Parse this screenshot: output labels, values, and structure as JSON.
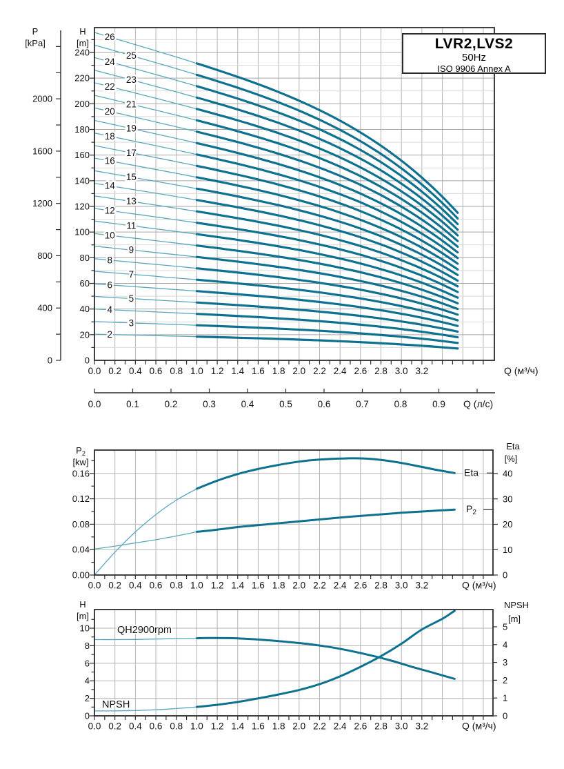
{
  "page": {
    "background": "#ffffff"
  },
  "title_block": {
    "model": "LVR2,LVS2",
    "frequency": "50Hz",
    "standard": "ISO 9906 Annex A"
  },
  "colors": {
    "curve": "#0e7190",
    "curve_thin": "#5aa7bd",
    "grid_minor": "#d9d9d9",
    "grid_major": "#a6a6a6",
    "grid_mid": "#b3b3b3",
    "axis": "#2b2b2b",
    "text": "#111111"
  },
  "chart_data": [
    {
      "id": "main-qh-family",
      "type": "line",
      "title": "LVR2,LVS2",
      "subtitle": "50Hz",
      "note": "ISO 9906 Annex A",
      "x_axis": {
        "title": "Q (м³/ч)",
        "tick_labels": [
          "0.0",
          "0.2",
          "0.4",
          "0.6",
          "0.8",
          "1.0",
          "1.2",
          "1.4",
          "1.6",
          "1.8",
          "2.0",
          "2.2",
          "2.4",
          "2.6",
          "2.8",
          "3.0",
          "3.2"
        ],
        "tick_step": 0.2,
        "minor_step": 0.1
      },
      "x2_axis": {
        "title": "Q (л/с)",
        "tick_labels": [
          "0.0",
          "0.1",
          "0.2",
          "0.3",
          "0.4",
          "0.5",
          "0.6",
          "0.7",
          "0.8",
          "0.9"
        ],
        "tick_step": 0.1
      },
      "y_axis": {
        "name": "H",
        "unit": "[m]",
        "tick_labels": [
          "0",
          "20",
          "40",
          "60",
          "80",
          "100",
          "120",
          "140",
          "160",
          "180",
          "200",
          "220",
          "240"
        ],
        "tick_step": 20,
        "minor_step": 10
      },
      "y2_axis": {
        "name": "P",
        "unit": "[kPa]",
        "tick_labels": [
          "0",
          "400",
          "800",
          "1200",
          "1600",
          "2000"
        ],
        "tick_step": 400,
        "minor_step": 200,
        "max_minor": 2400
      },
      "q_thick_from": 1.0,
      "q_end": 3.55,
      "curve_shape": {
        "lin": 0.33,
        "quart": 0.22
      },
      "curves": [
        {
          "label": "2",
          "h0": 20.4
        },
        {
          "label": "3",
          "h0": 30.2
        },
        {
          "label": "4",
          "h0": 40.0
        },
        {
          "label": "5",
          "h0": 49.8
        },
        {
          "label": "6",
          "h0": 59.6
        },
        {
          "label": "7",
          "h0": 69.4
        },
        {
          "label": "8",
          "h0": 79.2
        },
        {
          "label": "9",
          "h0": 89.0
        },
        {
          "label": "10",
          "h0": 98.8
        },
        {
          "label": "11",
          "h0": 108.6
        },
        {
          "label": "12",
          "h0": 118.4
        },
        {
          "label": "13",
          "h0": 128.2
        },
        {
          "label": "14",
          "h0": 138.0
        },
        {
          "label": "15",
          "h0": 147.8
        },
        {
          "label": "16",
          "h0": 157.6
        },
        {
          "label": "17",
          "h0": 167.4
        },
        {
          "label": "18",
          "h0": 177.2
        },
        {
          "label": "19",
          "h0": 187.0
        },
        {
          "label": "20",
          "h0": 196.8
        },
        {
          "label": "21",
          "h0": 206.6
        },
        {
          "label": "22",
          "h0": 216.4
        },
        {
          "label": "23",
          "h0": 226.2
        },
        {
          "label": "24",
          "h0": 236.0
        },
        {
          "label": "25",
          "h0": 245.8
        },
        {
          "label": "26",
          "h0": 255.6
        }
      ]
    },
    {
      "id": "power-efficiency",
      "type": "line",
      "x_axis": {
        "title": "Q (м³/ч)",
        "tick_labels": [
          "0.0",
          "0.2",
          "0.4",
          "0.6",
          "0.8",
          "1.0",
          "1.2",
          "1.4",
          "1.6",
          "1.8",
          "2.0",
          "2.2",
          "2.4",
          "2.6",
          "2.8",
          "3.0",
          "3.2"
        ],
        "tick_step": 0.2,
        "minor_step": 0.1
      },
      "y_axis": {
        "name": "P",
        "sub": "2",
        "unit": "[kw]",
        "tick_labels": [
          "0.00",
          "0.04",
          "0.08",
          "0.12",
          "0.16"
        ],
        "tick_step": 0.04,
        "minor_step": 0.02
      },
      "y2_axis": {
        "name": "Eta",
        "unit": "[%]",
        "tick_labels": [
          "0",
          "10",
          "20",
          "30",
          "40"
        ],
        "tick_step": 10
      },
      "q_thick_from": 1.0,
      "series": [
        {
          "name": "Eta",
          "display_main": "Eta",
          "display_sub": "",
          "axis": "y2",
          "points": [
            [
              0,
              0
            ],
            [
              0.2,
              9
            ],
            [
              0.4,
              17
            ],
            [
              0.6,
              23.8
            ],
            [
              0.8,
              29.5
            ],
            [
              1.0,
              34
            ],
            [
              1.2,
              37.2
            ],
            [
              1.4,
              39.8
            ],
            [
              1.6,
              41.8
            ],
            [
              1.8,
              43.4
            ],
            [
              2.0,
              44.7
            ],
            [
              2.2,
              45.5
            ],
            [
              2.4,
              45.9
            ],
            [
              2.6,
              46
            ],
            [
              2.8,
              45.4
            ],
            [
              3.0,
              44.2
            ],
            [
              3.2,
              42.6
            ],
            [
              3.35,
              41.4
            ],
            [
              3.52,
              40.2
            ]
          ]
        },
        {
          "name": "P2",
          "display_main": "P",
          "display_sub": "2",
          "axis": "y",
          "points": [
            [
              0,
              0.041
            ],
            [
              0.2,
              0.0455
            ],
            [
              0.4,
              0.0505
            ],
            [
              0.6,
              0.0555
            ],
            [
              0.8,
              0.0615
            ],
            [
              1.0,
              0.068
            ],
            [
              1.2,
              0.0715
            ],
            [
              1.4,
              0.0755
            ],
            [
              1.6,
              0.0785
            ],
            [
              1.8,
              0.0815
            ],
            [
              2.0,
              0.0845
            ],
            [
              2.2,
              0.0875
            ],
            [
              2.4,
              0.0905
            ],
            [
              2.6,
              0.093
            ],
            [
              2.8,
              0.0955
            ],
            [
              3.0,
              0.098
            ],
            [
              3.2,
              0.1
            ],
            [
              3.35,
              0.1015
            ],
            [
              3.52,
              0.103
            ]
          ]
        }
      ]
    },
    {
      "id": "qh-npsh",
      "type": "line",
      "x_axis": {
        "title": "Q (м³/ч)",
        "tick_labels": [
          "0.0",
          "0.2",
          "0.4",
          "0.6",
          "0.8",
          "1.0",
          "1.2",
          "1.4",
          "1.6",
          "1.8",
          "2.0",
          "2.2",
          "2.4",
          "2.6",
          "2.8",
          "3.0",
          "3.2"
        ],
        "tick_step": 0.2,
        "minor_step": 0.1
      },
      "y_axis": {
        "name": "H",
        "unit": "[m]",
        "tick_labels": [
          "0",
          "2",
          "4",
          "6",
          "8",
          "10"
        ],
        "tick_step": 2,
        "minor_step": 1
      },
      "y2_axis": {
        "name": "NPSH",
        "unit": "[m]",
        "tick_labels": [
          "0",
          "1",
          "2",
          "3",
          "4",
          "5"
        ],
        "tick_step": 1
      },
      "q_thick_from": 1.0,
      "series": [
        {
          "name": "QH2900rpm",
          "display_main": "QH2900rpm",
          "display_sub": "",
          "axis": "y",
          "points": [
            [
              0,
              8.7
            ],
            [
              0.2,
              8.7
            ],
            [
              0.4,
              8.72
            ],
            [
              0.6,
              8.76
            ],
            [
              0.8,
              8.8
            ],
            [
              1.0,
              8.85
            ],
            [
              1.1,
              8.88
            ],
            [
              1.3,
              8.87
            ],
            [
              1.5,
              8.78
            ],
            [
              1.7,
              8.62
            ],
            [
              1.9,
              8.42
            ],
            [
              2.1,
              8.18
            ],
            [
              2.3,
              7.85
            ],
            [
              2.5,
              7.42
            ],
            [
              2.7,
              6.9
            ],
            [
              2.9,
              6.3
            ],
            [
              3.1,
              5.6
            ],
            [
              3.3,
              4.95
            ],
            [
              3.52,
              4.22
            ]
          ]
        },
        {
          "name": "NPSH",
          "display_main": "NPSH",
          "display_sub": "",
          "axis": "y2",
          "points": [
            [
              0,
              0.28
            ],
            [
              0.2,
              0.28
            ],
            [
              0.4,
              0.3
            ],
            [
              0.6,
              0.34
            ],
            [
              0.8,
              0.41
            ],
            [
              1.0,
              0.5
            ],
            [
              1.2,
              0.62
            ],
            [
              1.4,
              0.78
            ],
            [
              1.6,
              0.98
            ],
            [
              1.8,
              1.2
            ],
            [
              2.0,
              1.45
            ],
            [
              2.2,
              1.78
            ],
            [
              2.4,
              2.22
            ],
            [
              2.6,
              2.75
            ],
            [
              2.8,
              3.35
            ],
            [
              3.0,
              4.05
            ],
            [
              3.2,
              4.85
            ],
            [
              3.4,
              5.45
            ],
            [
              3.52,
              5.9
            ]
          ]
        }
      ]
    }
  ]
}
